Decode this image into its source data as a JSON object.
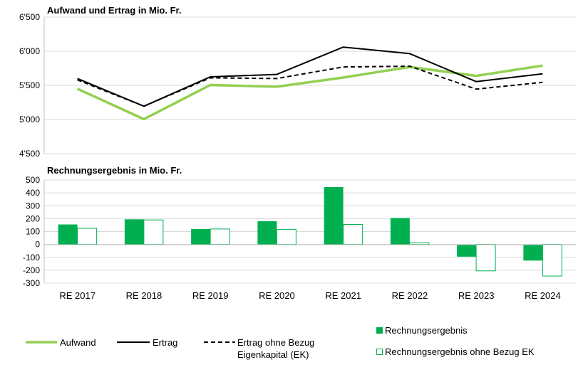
{
  "chart_data": [
    {
      "type": "line",
      "title": "Aufwand und Ertrag in Mio. Fr.",
      "categories": [
        "RE 2017",
        "RE 2018",
        "RE 2019",
        "RE 2020",
        "RE 2021",
        "RE 2022",
        "RE 2023",
        "RE 2024"
      ],
      "ylim": [
        4500,
        6500
      ],
      "yticks": [
        4500,
        5000,
        5500,
        6000,
        6500
      ],
      "ytick_labels": [
        "4'500",
        "5'000",
        "5'500",
        "6'000",
        "6'500"
      ],
      "grid": true,
      "series": [
        {
          "name": "Aufwand",
          "color": "#92d050",
          "style": "solid-thick",
          "values": [
            5450,
            5005,
            5505,
            5480,
            5615,
            5770,
            5640,
            5790
          ]
        },
        {
          "name": "Ertrag",
          "color": "#000000",
          "style": "solid",
          "values": [
            5600,
            5195,
            5625,
            5660,
            6060,
            5965,
            5555,
            5670
          ]
        },
        {
          "name": "Ertrag ohne Bezug Eigenkapital (EK)",
          "color": "#000000",
          "style": "dashed",
          "values": [
            5580,
            5195,
            5610,
            5600,
            5770,
            5780,
            5445,
            5545
          ]
        }
      ]
    },
    {
      "type": "bar",
      "title": "Rechnungsergebnis in Mio. Fr.",
      "categories": [
        "RE 2017",
        "RE 2018",
        "RE 2019",
        "RE 2020",
        "RE 2021",
        "RE 2022",
        "RE 2023",
        "RE 2024"
      ],
      "ylim": [
        -300,
        500
      ],
      "yticks": [
        -300,
        -200,
        -100,
        0,
        100,
        200,
        300,
        400,
        500
      ],
      "ytick_labels": [
        "-300",
        "-200",
        "-100",
        "0",
        "100",
        "200",
        "300",
        "400",
        "500"
      ],
      "grid": true,
      "series": [
        {
          "name": "Rechnungsergebnis",
          "color": "#00b050",
          "fill": "solid",
          "values": [
            155,
            195,
            120,
            180,
            445,
            205,
            -95,
            -125
          ]
        },
        {
          "name": "Rechnungsergebnis ohne Bezug EK",
          "color": "#00b050",
          "fill": "outline",
          "values": [
            125,
            190,
            120,
            117,
            155,
            13,
            -205,
            -245
          ]
        }
      ]
    }
  ],
  "legend": {
    "placement": "bottom",
    "items": [
      {
        "label": "Aufwand"
      },
      {
        "label": "Ertrag"
      },
      {
        "label_lines": [
          "Ertrag ohne Bezug",
          "Eigenkapital (EK)"
        ]
      },
      {
        "label": "Rechnungsergebnis"
      },
      {
        "label": "Rechnungsergebnis ohne Bezug EK"
      }
    ]
  }
}
